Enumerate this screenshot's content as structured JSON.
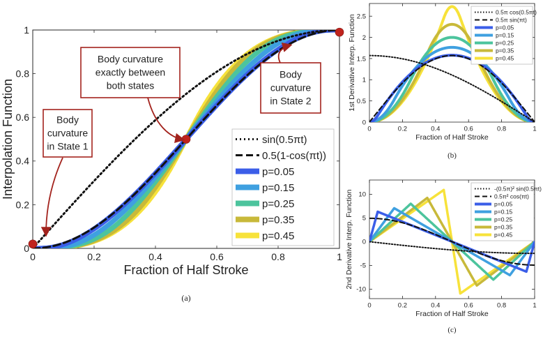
{
  "chart_data": [
    {
      "panel": "a",
      "type": "line",
      "caption": "(a)",
      "xlabel": "Fraction of Half Stroke",
      "ylabel": "Interpolation Function",
      "xlim": [
        0,
        1
      ],
      "ylim": [
        0,
        1
      ],
      "xticks": [
        "0",
        "0.2",
        "0.4",
        "0.6",
        "0.8",
        "1"
      ],
      "yticks": [
        "0",
        "0.2",
        "0.4",
        "0.6",
        "0.8",
        "1"
      ],
      "legend_position": "lower-right",
      "series": [
        {
          "name": "p=0.45",
          "kind": "fermi",
          "p": 0.45,
          "color": "#f7e23a"
        },
        {
          "name": "p=0.35",
          "kind": "fermi",
          "p": 0.35,
          "color": "#c8b93a"
        },
        {
          "name": "p=0.25",
          "kind": "fermi",
          "p": 0.25,
          "color": "#4cc49d"
        },
        {
          "name": "p=0.15",
          "kind": "fermi",
          "p": 0.15,
          "color": "#3fa0e0"
        },
        {
          "name": "p=0.05",
          "kind": "fermi",
          "p": 0.05,
          "color": "#3b5ee8"
        },
        {
          "name": "0.5(1-cos(πt))",
          "kind": "cos",
          "color": "#111111",
          "dash": "dash"
        },
        {
          "name": "sin(0.5πt)",
          "kind": "sin",
          "color": "#111111",
          "dash": "dot"
        }
      ],
      "legend": [
        "sin(0.5πt)",
        "0.5(1-cos(πt))",
        "p=0.05",
        "p=0.15",
        "p=0.25",
        "p=0.35",
        "p=0.45"
      ],
      "markers": [
        {
          "x": 0,
          "y": 0.02,
          "color": "#c0231d"
        },
        {
          "x": 0.5,
          "y": 0.5,
          "color": "#c0231d"
        },
        {
          "x": 1,
          "y": 0.99,
          "color": "#c0231d"
        }
      ],
      "annotations": [
        {
          "lines": [
            "Body",
            "curvature",
            "in State 1"
          ],
          "target": [
            0,
            0.02
          ]
        },
        {
          "lines": [
            "Body curvature",
            "exactly between",
            "both states"
          ],
          "target": [
            0.5,
            0.5
          ]
        },
        {
          "lines": [
            "Body",
            "curvature",
            "in State 2"
          ],
          "target": [
            1,
            0.99
          ]
        }
      ]
    },
    {
      "panel": "b",
      "type": "line",
      "caption": "(b)",
      "xlabel": "Fraction of Half Stroke",
      "ylabel": "1st Derivative Interp. Function",
      "xlim": [
        0,
        1
      ],
      "ylim": [
        0,
        2.8
      ],
      "xticks": [
        "0",
        "0.2",
        "0.4",
        "0.6",
        "0.8",
        "1"
      ],
      "yticks": [
        "0",
        "0.5",
        "1",
        "1.5",
        "2",
        "2.5"
      ],
      "legend_position": "top-right",
      "series": [
        {
          "name": "p=0.45",
          "kind": "fermi1",
          "p": 0.45,
          "color": "#f7e23a"
        },
        {
          "name": "p=0.35",
          "kind": "fermi1",
          "p": 0.35,
          "color": "#c8b93a"
        },
        {
          "name": "p=0.25",
          "kind": "fermi1",
          "p": 0.25,
          "color": "#4cc49d"
        },
        {
          "name": "p=0.15",
          "kind": "fermi1",
          "p": 0.15,
          "color": "#3fa0e0"
        },
        {
          "name": "p=0.05",
          "kind": "fermi1",
          "p": 0.05,
          "color": "#3b5ee8"
        },
        {
          "name": "0.5π sin(πt)",
          "kind": "cos1",
          "color": "#111111",
          "dash": "dash"
        },
        {
          "name": "0.5π cos(0.5πt)",
          "kind": "sin1",
          "color": "#111111",
          "dash": "dot"
        }
      ],
      "legend": [
        "0.5π cos(0.5πt)",
        "0.5π sin(πt)",
        "p=0.05",
        "p=0.15",
        "p=0.25",
        "p=0.35",
        "p=0.45"
      ]
    },
    {
      "panel": "c",
      "type": "line",
      "caption": "(c)",
      "xlabel": "Fraction of Half Stroke",
      "ylabel": "2nd Derivative Interp. Function",
      "xlim": [
        0,
        1
      ],
      "ylim": [
        -12,
        13
      ],
      "xticks": [
        "0",
        "0.2",
        "0.4",
        "0.6",
        "0.8",
        "1"
      ],
      "yticks": [
        "-10",
        "-5",
        "0",
        "5",
        "10"
      ],
      "legend_position": "top-right",
      "series": [
        {
          "name": "p=0.45",
          "kind": "fermi2",
          "p": 0.45,
          "color": "#f7e23a"
        },
        {
          "name": "p=0.35",
          "kind": "fermi2",
          "p": 0.35,
          "color": "#c8b93a"
        },
        {
          "name": "p=0.25",
          "kind": "fermi2",
          "p": 0.25,
          "color": "#4cc49d"
        },
        {
          "name": "p=0.15",
          "kind": "fermi2",
          "p": 0.15,
          "color": "#3fa0e0"
        },
        {
          "name": "p=0.05",
          "kind": "fermi2",
          "p": 0.05,
          "color": "#3b5ee8"
        },
        {
          "name": "0.5π² cos(πt)",
          "kind": "cos2",
          "color": "#111111",
          "dash": "dash"
        },
        {
          "name": "-(0.5π)² sin(0.5πt)",
          "kind": "sin2",
          "color": "#111111",
          "dash": "dot"
        }
      ],
      "legend": [
        "-(0.5π)² sin(0.5πt)",
        "0.5π² cos(πt)",
        "p=0.05",
        "p=0.15",
        "p=0.25",
        "p=0.35",
        "p=0.45"
      ]
    }
  ]
}
